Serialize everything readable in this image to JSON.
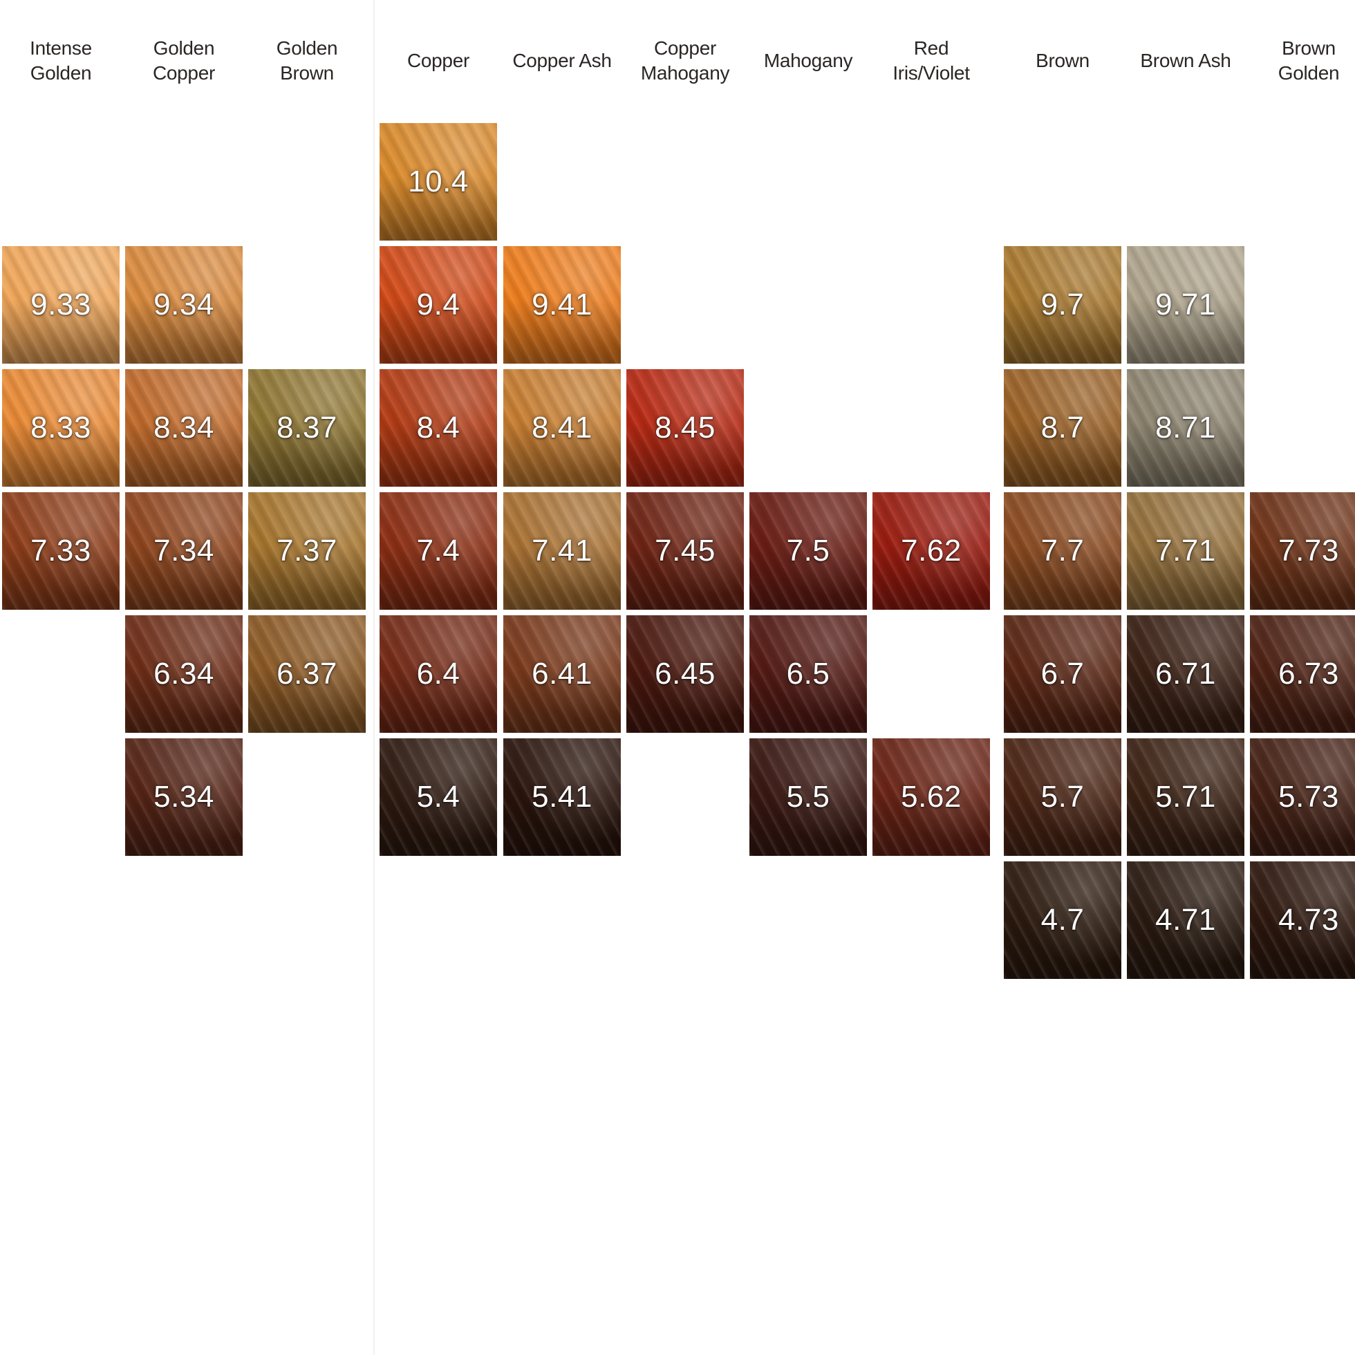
{
  "columns": [
    {
      "id": "intense-golden",
      "label_lines": [
        "Intense",
        "Golden"
      ]
    },
    {
      "id": "golden-copper",
      "label_lines": [
        "Golden",
        "Copper"
      ]
    },
    {
      "id": "golden-brown",
      "label_lines": [
        "Golden",
        "Brown"
      ]
    },
    {
      "id": "copper",
      "label_lines": [
        "Copper"
      ]
    },
    {
      "id": "copper-ash",
      "label_lines": [
        "Copper Ash"
      ]
    },
    {
      "id": "copper-mahogany",
      "label_lines": [
        "Copper",
        "Mahogany"
      ]
    },
    {
      "id": "mahogany",
      "label_lines": [
        "Mahogany"
      ]
    },
    {
      "id": "red-iris-violet",
      "label_lines": [
        "Red",
        "Iris/Violet"
      ]
    },
    {
      "id": "brown",
      "label_lines": [
        "Brown"
      ]
    },
    {
      "id": "brown-ash",
      "label_lines": [
        "Brown Ash"
      ]
    },
    {
      "id": "brown-golden",
      "label_lines": [
        "Brown",
        "Golden"
      ]
    }
  ],
  "swatches": [
    {
      "code": "10.4",
      "col": 3,
      "row": 0,
      "color": "#d98a2c"
    },
    {
      "code": "9.33",
      "col": 0,
      "row": 1,
      "color": "#efa65a"
    },
    {
      "code": "9.34",
      "col": 1,
      "row": 1,
      "color": "#d98a3e"
    },
    {
      "code": "9.4",
      "col": 3,
      "row": 1,
      "color": "#d04a18"
    },
    {
      "code": "9.41",
      "col": 4,
      "row": 1,
      "color": "#ec7d1e"
    },
    {
      "code": "9.7",
      "col": 8,
      "row": 1,
      "color": "#a8782f"
    },
    {
      "code": "9.71",
      "col": 9,
      "row": 1,
      "color": "#aea38c"
    },
    {
      "code": "8.33",
      "col": 0,
      "row": 2,
      "color": "#e88a36"
    },
    {
      "code": "8.34",
      "col": 1,
      "row": 2,
      "color": "#c06b2c"
    },
    {
      "code": "8.37",
      "col": 2,
      "row": 2,
      "color": "#8f7634"
    },
    {
      "code": "8.4",
      "col": 3,
      "row": 2,
      "color": "#b23c15"
    },
    {
      "code": "8.41",
      "col": 4,
      "row": 2,
      "color": "#c77e32"
    },
    {
      "code": "8.45",
      "col": 5,
      "row": 2,
      "color": "#b72a14"
    },
    {
      "code": "8.7",
      "col": 8,
      "row": 2,
      "color": "#9a6126"
    },
    {
      "code": "8.71",
      "col": 9,
      "row": 2,
      "color": "#8d8470"
    },
    {
      "code": "7.33",
      "col": 0,
      "row": 3,
      "color": "#8e3e1a"
    },
    {
      "code": "7.34",
      "col": 1,
      "row": 3,
      "color": "#8f461e"
    },
    {
      "code": "7.37",
      "col": 2,
      "row": 3,
      "color": "#a7762f"
    },
    {
      "code": "7.4",
      "col": 3,
      "row": 3,
      "color": "#8c2f14"
    },
    {
      "code": "7.41",
      "col": 4,
      "row": 3,
      "color": "#a97234"
    },
    {
      "code": "7.45",
      "col": 5,
      "row": 3,
      "color": "#6e2414"
    },
    {
      "code": "7.5",
      "col": 6,
      "row": 3,
      "color": "#6a1d14"
    },
    {
      "code": "7.62",
      "col": 7,
      "row": 3,
      "color": "#9a1c10"
    },
    {
      "code": "7.7",
      "col": 8,
      "row": 3,
      "color": "#8a4a20"
    },
    {
      "code": "7.71",
      "col": 9,
      "row": 3,
      "color": "#94703c"
    },
    {
      "code": "7.73",
      "col": 10,
      "row": 3,
      "color": "#6e3318"
    },
    {
      "code": "6.34",
      "col": 1,
      "row": 4,
      "color": "#6e2e18"
    },
    {
      "code": "6.37",
      "col": 2,
      "row": 4,
      "color": "#8c5a26"
    },
    {
      "code": "6.4",
      "col": 3,
      "row": 4,
      "color": "#742a16"
    },
    {
      "code": "6.41",
      "col": 4,
      "row": 4,
      "color": "#7a3a1c"
    },
    {
      "code": "6.45",
      "col": 5,
      "row": 4,
      "color": "#4a180e"
    },
    {
      "code": "6.5",
      "col": 6,
      "row": 4,
      "color": "#541a14"
    },
    {
      "code": "6.7",
      "col": 8,
      "row": 4,
      "color": "#5a2614"
    },
    {
      "code": "6.71",
      "col": 9,
      "row": 4,
      "color": "#3a2014"
    },
    {
      "code": "6.73",
      "col": 10,
      "row": 4,
      "color": "#4e2214"
    },
    {
      "code": "5.34",
      "col": 1,
      "row": 5,
      "color": "#552416"
    },
    {
      "code": "5.4",
      "col": 3,
      "row": 5,
      "color": "#2e1a10"
    },
    {
      "code": "5.41",
      "col": 4,
      "row": 5,
      "color": "#2a140c"
    },
    {
      "code": "5.5",
      "col": 6,
      "row": 5,
      "color": "#3a1812"
    },
    {
      "code": "5.62",
      "col": 7,
      "row": 5,
      "color": "#6a2416"
    },
    {
      "code": "5.7",
      "col": 8,
      "row": 5,
      "color": "#4a2414"
    },
    {
      "code": "5.71",
      "col": 9,
      "row": 5,
      "color": "#3c2214"
    },
    {
      "code": "5.73",
      "col": 10,
      "row": 5,
      "color": "#442014"
    },
    {
      "code": "4.7",
      "col": 8,
      "row": 6,
      "color": "#2c1a0e"
    },
    {
      "code": "4.71",
      "col": 9,
      "row": 6,
      "color": "#2a1a10"
    },
    {
      "code": "4.73",
      "col": 10,
      "row": 6,
      "color": "#2e180e"
    }
  ]
}
